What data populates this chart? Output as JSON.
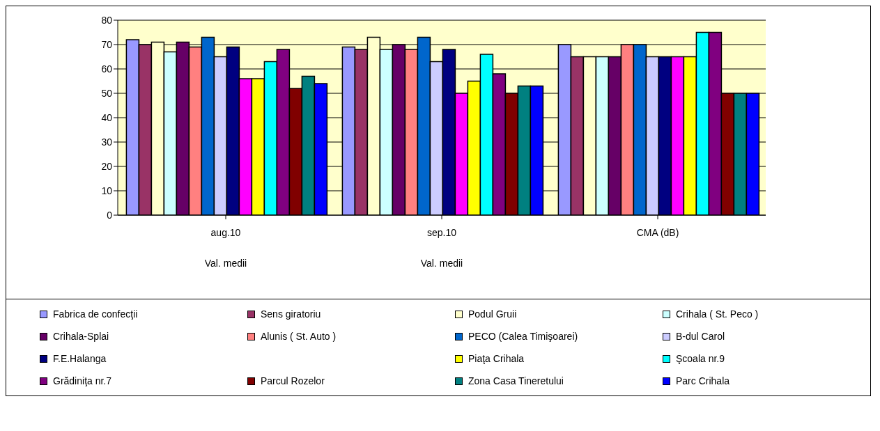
{
  "chart_data": {
    "type": "bar",
    "categories": [
      "aug.10\nVal. medii",
      "sep.10\nVal. medii",
      "CMA  (dB)"
    ],
    "series": [
      {
        "name": "Fabrica de confecţii",
        "color": "#9999ff",
        "values": [
          72,
          69,
          70
        ]
      },
      {
        "name": "Sens giratoriu",
        "color": "#993366",
        "values": [
          70,
          68,
          65
        ]
      },
      {
        "name": "Podul Gruii",
        "color": "#ffffcc",
        "values": [
          71,
          73,
          65
        ]
      },
      {
        "name": "Crihala ( St. Peco )",
        "color": "#ccffff",
        "values": [
          67,
          68,
          65
        ]
      },
      {
        "name": "Crihala-Splai",
        "color": "#660066",
        "values": [
          71,
          70,
          65
        ]
      },
      {
        "name": "Alunis ( St. Auto )",
        "color": "#ff8080",
        "values": [
          69,
          68,
          70
        ]
      },
      {
        "name": "PECO (Calea Timişoarei)",
        "color": "#0066cc",
        "values": [
          73,
          73,
          70
        ]
      },
      {
        "name": "B-dul Carol",
        "color": "#ccccff",
        "values": [
          65,
          63,
          65
        ]
      },
      {
        "name": "F.E.Halanga",
        "color": "#000080",
        "values": [
          69,
          68,
          65
        ]
      },
      {
        "color": "#ff00ff",
        "values": [
          56,
          50,
          65
        ]
      },
      {
        "name": "Piaţa  Crihala",
        "color": "#ffff00",
        "values": [
          56,
          55,
          65
        ]
      },
      {
        "name": "Şcoala nr.9",
        "color": "#00ffff",
        "values": [
          63,
          66,
          75
        ]
      },
      {
        "name": "Grădiniţa nr.7",
        "color": "#800080",
        "values": [
          68,
          58,
          75
        ]
      },
      {
        "name": "Parcul  Rozelor",
        "color": "#800000",
        "values": [
          52,
          50,
          50
        ]
      },
      {
        "name": "Zona Casa Tineretului",
        "color": "#008080",
        "values": [
          57,
          53,
          50
        ]
      },
      {
        "name": "Parc Crihala",
        "color": "#0000ff",
        "values": [
          54,
          53,
          50
        ]
      }
    ],
    "ylim": [
      0,
      80
    ],
    "yticks": [
      0,
      10,
      20,
      30,
      40,
      50,
      60,
      70,
      80
    ],
    "grid": "y",
    "legend": "bottom"
  }
}
